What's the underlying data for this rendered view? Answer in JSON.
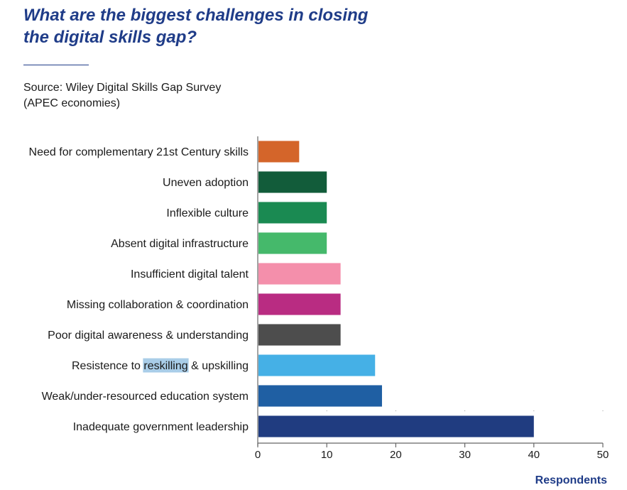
{
  "header": {
    "title": "What are the biggest challenges in closing the digital skills gap?",
    "source": "Source: Wiley Digital Skills Gap Survey (APEC economies)"
  },
  "chart_data": {
    "type": "bar",
    "orientation": "horizontal",
    "title": "What are the biggest challenges in closing the digital skills gap?",
    "xlabel": "Respondents",
    "ylabel": "",
    "xlim": [
      0,
      50
    ],
    "xticks": [
      0,
      10,
      20,
      30,
      40,
      50
    ],
    "grid": false,
    "categories": [
      "Need for complementary 21st Century skills",
      "Uneven adoption",
      "Inflexible culture",
      "Absent digital infrastructure",
      "Insufficient digital talent",
      "Missing collaboration & coordination",
      "Poor digital awareness & understanding",
      "Resistence to reskilling & upskilling",
      "Weak/under-resourced education system",
      "Inadequate government leadership"
    ],
    "values": [
      6,
      10,
      10,
      10,
      12,
      12,
      12,
      17,
      18,
      40
    ],
    "colors": [
      "#d4652a",
      "#125c3a",
      "#1a8a52",
      "#45b96b",
      "#f48fab",
      "#b92c82",
      "#4d4d4d",
      "#45b0e6",
      "#1f5fa3",
      "#203c80"
    ],
    "highlight": {
      "category_index": 7,
      "text": "reskilling",
      "color": "#a9cde8"
    }
  }
}
